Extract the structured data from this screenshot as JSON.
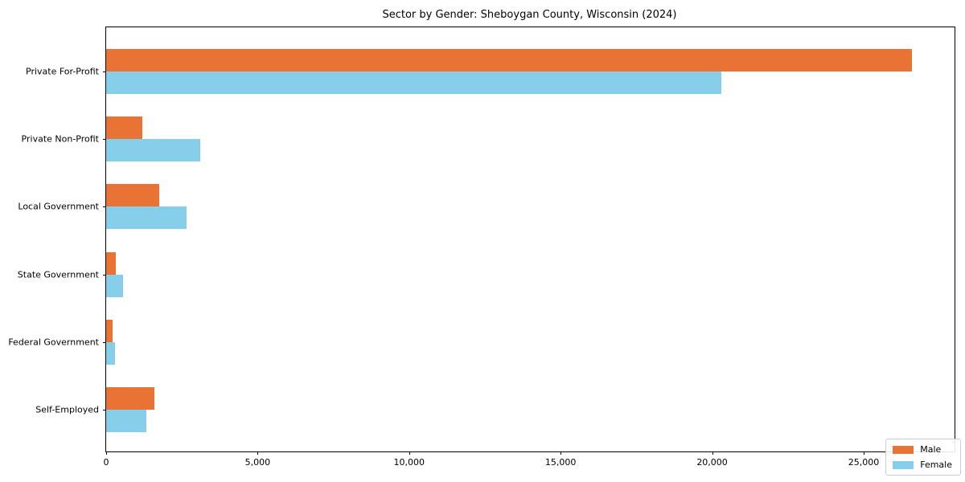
{
  "chart_data": {
    "type": "bar",
    "orientation": "horizontal",
    "title": "Sector by Gender: Sheboygan County, Wisconsin (2024)",
    "categories": [
      "Private For-Profit",
      "Private Non-Profit",
      "Local Government",
      "State Government",
      "Federal Government",
      "Self-Employed"
    ],
    "series": [
      {
        "name": "Male",
        "color": "#e97335",
        "values": [
          26600,
          1200,
          1750,
          330,
          210,
          1600
        ]
      },
      {
        "name": "Female",
        "color": "#87ceea",
        "values": [
          20300,
          3100,
          2650,
          550,
          280,
          1330
        ]
      }
    ],
    "xlim": [
      0,
      28000
    ],
    "xticks": [
      0,
      5000,
      10000,
      15000,
      20000,
      25000
    ],
    "xtick_labels": [
      "0",
      "5,000",
      "10,000",
      "15,000",
      "20,000",
      "25,000"
    ],
    "xlabel": "",
    "ylabel": "",
    "grid": false,
    "legend_position": "lower right"
  }
}
